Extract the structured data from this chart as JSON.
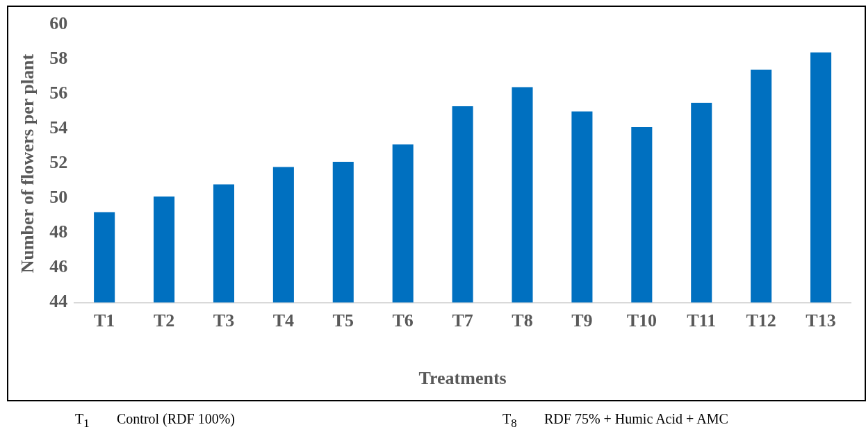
{
  "chart_data": {
    "type": "bar",
    "xlabel": "Treatments",
    "ylabel": "Number of flowers per plant",
    "categories": [
      "T1",
      "T2",
      "T3",
      "T4",
      "T5",
      "T6",
      "T7",
      "T8",
      "T9",
      "T10",
      "T11",
      "T12",
      "T13"
    ],
    "values": [
      49.2,
      50.1,
      50.8,
      51.8,
      52.1,
      53.1,
      55.3,
      56.4,
      55.0,
      54.1,
      55.5,
      57.4,
      58.4
    ],
    "color": "#0070c0",
    "ylim": [
      44,
      60
    ],
    "yticks": [
      44,
      46,
      48,
      50,
      52,
      54,
      56,
      58,
      60
    ],
    "grid": false,
    "legend": false,
    "annotations": [
      "T$_{1}$ Control (RDF 100%)",
      "T$_{8}$ RDF 75% + Humic Acid + AMC"
    ]
  }
}
